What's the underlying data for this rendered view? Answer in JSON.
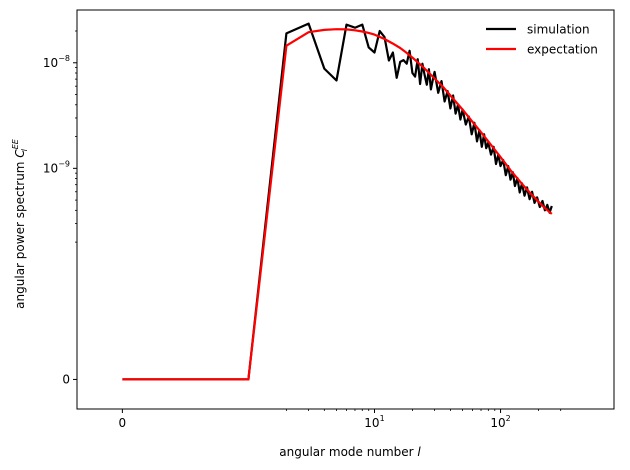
{
  "chart_data": {
    "type": "line",
    "title": "",
    "xlabel": "angular mode number",
    "xlabel_symbol": "l",
    "ylabel": "angular power spectrum",
    "ylabel_symbol": "C",
    "ylabel_superscript": "EE",
    "ylabel_subscript": "l",
    "xscale": "symlog",
    "yscale": "symlog",
    "xlim": [
      0,
      300
    ],
    "ylim": [
      0,
      3e-08
    ],
    "grid": false,
    "legend_position": "top-right",
    "x_ticks": [
      {
        "value": 0,
        "base": "0",
        "exp": ""
      },
      {
        "value": 10,
        "base": "10",
        "exp": "1"
      },
      {
        "value": 100,
        "base": "10",
        "exp": "2"
      }
    ],
    "y_ticks": [
      {
        "value": 0,
        "base": "0",
        "exp": ""
      },
      {
        "value": 1e-09,
        "base": "10",
        "exp": "−9"
      },
      {
        "value": 1e-08,
        "base": "10",
        "exp": "−8"
      }
    ],
    "series": [
      {
        "name": "simulation",
        "color": "#000000",
        "x": [
          0,
          1,
          2,
          3,
          4,
          5,
          6,
          7,
          8,
          9,
          10,
          11,
          12,
          13,
          14,
          15,
          16,
          17,
          18,
          19,
          20,
          21,
          22,
          23,
          24,
          25,
          26,
          27,
          28,
          29,
          30,
          32,
          34,
          36,
          38,
          40,
          42,
          44,
          46,
          48,
          50,
          53,
          56,
          59,
          62,
          65,
          68,
          71,
          74,
          77,
          80,
          84,
          88,
          92,
          96,
          100,
          105,
          110,
          115,
          120,
          125,
          130,
          136,
          142,
          148,
          155,
          162,
          170,
          178,
          186,
          195,
          205,
          215,
          225,
          235,
          245,
          255
        ],
        "y": [
          0,
          0,
          1.9e-08,
          2.35e-08,
          8.8e-09,
          6.8e-09,
          2.3e-08,
          2.15e-08,
          2.3e-08,
          1.4e-08,
          1.25e-08,
          2e-08,
          1.75e-08,
          1.05e-08,
          1.25e-08,
          7.2e-09,
          1.02e-08,
          1.06e-08,
          9.8e-09,
          1.3e-08,
          8e-09,
          7.4e-09,
          1.08e-08,
          6.3e-09,
          9.8e-09,
          7.6e-09,
          6.2e-09,
          8.7e-09,
          5.6e-09,
          6.9e-09,
          8.2e-09,
          5.2e-09,
          6.7e-09,
          4.3e-09,
          5.4e-09,
          3.7e-09,
          4.9e-09,
          3.3e-09,
          4e-09,
          2.9e-09,
          3.6e-09,
          2.6e-09,
          3.1e-09,
          2.1e-09,
          2.7e-09,
          1.8e-09,
          2.3e-09,
          1.6e-09,
          2.1e-09,
          1.55e-09,
          1.75e-09,
          1.35e-09,
          1.6e-09,
          1.1e-09,
          1.35e-09,
          1.05e-09,
          1.2e-09,
          8.6e-10,
          1.05e-09,
          7.8e-10,
          9.2e-10,
          6.8e-10,
          8.1e-10,
          5.9e-10,
          7.2e-10,
          5.5e-10,
          6.6e-10,
          5.1e-10,
          6e-10,
          4.7e-10,
          5.3e-10,
          4.3e-10,
          4.9e-10,
          4e-10,
          4.5e-10,
          3.8e-10,
          4.4e-10
        ]
      },
      {
        "name": "expectation",
        "color": "#ff0000",
        "x": [
          0,
          1,
          2,
          3,
          4,
          5,
          6,
          7,
          8,
          9,
          10,
          12,
          14,
          16,
          18,
          20,
          25,
          30,
          35,
          40,
          50,
          60,
          70,
          80,
          100,
          120,
          150,
          180,
          220,
          255
        ],
        "y": [
          0,
          0,
          1.45e-08,
          1.95e-08,
          2.05e-08,
          2.08e-08,
          2.07e-08,
          2.03e-08,
          1.98e-08,
          1.92e-08,
          1.85e-08,
          1.68e-08,
          1.52e-08,
          1.38e-08,
          1.24e-08,
          1.12e-08,
          8.8e-09,
          7.1e-09,
          5.9e-09,
          4.9e-09,
          3.6e-09,
          2.75e-09,
          2.2e-09,
          1.8e-09,
          1.28e-09,
          9.6e-10,
          7e-10,
          5.5e-10,
          4.3e-10,
          3.7e-10
        ]
      }
    ]
  }
}
